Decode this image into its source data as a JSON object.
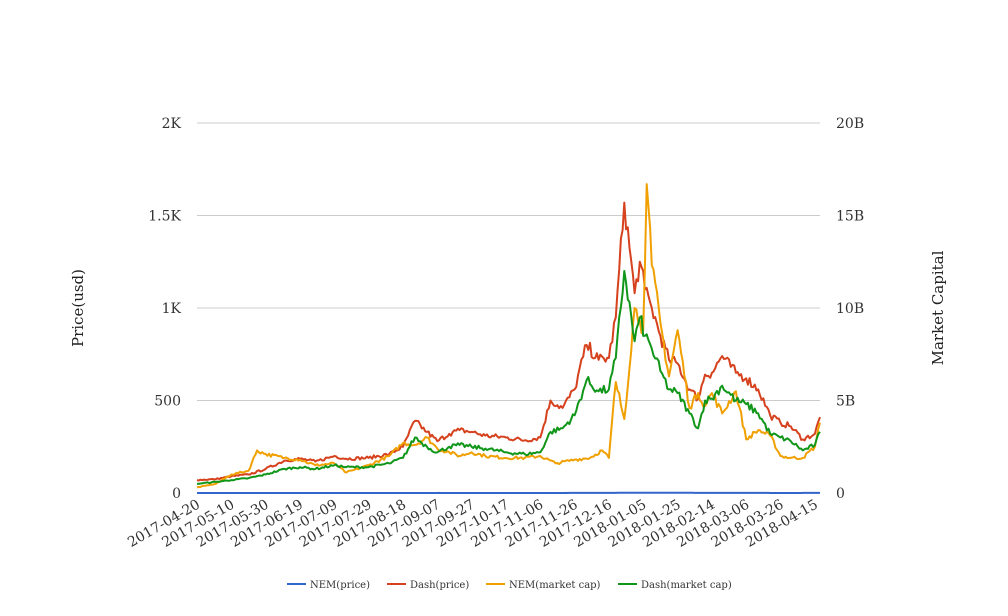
{
  "chart_data": {
    "type": "line",
    "x_label": "",
    "y_left_label": "Price(usd)",
    "y_right_label": "Market Capital",
    "x_ticks": [
      "2017-04-20",
      "2017-05-10",
      "2017-05-30",
      "2017-06-19",
      "2017-07-09",
      "2017-07-29",
      "2017-08-18",
      "2017-09-07",
      "2017-09-27",
      "2017-10-17",
      "2017-11-06",
      "2017-11-26",
      "2017-12-16",
      "2018-01-05",
      "2018-01-25",
      "2018-02-14",
      "2018-03-06",
      "2018-03-26",
      "2018-04-15"
    ],
    "y_left_ticks": [
      "0",
      "500",
      "1K",
      "1.5K",
      "2K"
    ],
    "y_right_ticks": [
      "0",
      "5B",
      "10B",
      "15B",
      "20B"
    ],
    "y_left_range": [
      0,
      2000
    ],
    "y_right_range": [
      0,
      20
    ],
    "y_right_unit": "B",
    "grid": true,
    "legend_position": "bottom",
    "series": [
      {
        "name": "NEM(price)",
        "axis": "left",
        "color": "#3366cc",
        "x": [
          "2017-04-20",
          "2017-05-10",
          "2017-05-30",
          "2017-06-19",
          "2017-07-09",
          "2017-07-29",
          "2017-08-18",
          "2017-09-07",
          "2017-09-27",
          "2017-10-17",
          "2017-11-06",
          "2017-11-26",
          "2017-12-16",
          "2018-01-05",
          "2018-01-25",
          "2018-02-14",
          "2018-03-06",
          "2018-03-26",
          "2018-04-15",
          "2018-04-18"
        ],
        "values": [
          0.02,
          0.05,
          0.2,
          0.18,
          0.15,
          0.17,
          0.24,
          0.27,
          0.21,
          0.19,
          0.2,
          0.28,
          0.6,
          1.5,
          1.0,
          0.55,
          0.4,
          0.22,
          0.3,
          0.35
        ]
      },
      {
        "name": "Dash(price)",
        "axis": "left",
        "color": "#d6411e",
        "x": [
          "2017-04-20",
          "2017-05-01",
          "2017-05-10",
          "2017-05-20",
          "2017-05-30",
          "2017-06-10",
          "2017-06-19",
          "2017-06-28",
          "2017-07-09",
          "2017-07-16",
          "2017-07-29",
          "2017-08-10",
          "2017-08-18",
          "2017-08-25",
          "2017-09-01",
          "2017-09-07",
          "2017-09-14",
          "2017-09-20",
          "2017-09-27",
          "2017-10-05",
          "2017-10-17",
          "2017-10-28",
          "2017-11-06",
          "2017-11-12",
          "2017-11-19",
          "2017-11-26",
          "2017-12-03",
          "2017-12-10",
          "2017-12-16",
          "2017-12-20",
          "2017-12-25",
          "2017-12-31",
          "2018-01-03",
          "2018-01-06",
          "2018-01-10",
          "2018-01-15",
          "2018-01-20",
          "2018-01-25",
          "2018-02-01",
          "2018-02-06",
          "2018-02-10",
          "2018-02-14",
          "2018-02-20",
          "2018-02-28",
          "2018-03-06",
          "2018-03-13",
          "2018-03-20",
          "2018-03-26",
          "2018-04-01",
          "2018-04-08",
          "2018-04-15",
          "2018-04-18"
        ],
        "values": [
          70,
          75,
          90,
          100,
          130,
          175,
          185,
          170,
          200,
          185,
          190,
          210,
          250,
          390,
          330,
          280,
          320,
          340,
          330,
          310,
          300,
          285,
          300,
          500,
          460,
          560,
          800,
          720,
          730,
          950,
          1570,
          1080,
          1250,
          1100,
          1000,
          850,
          720,
          700,
          560,
          510,
          640,
          650,
          740,
          650,
          620,
          560,
          420,
          380,
          360,
          290,
          320,
          410
        ]
      },
      {
        "name": "NEM(market cap)",
        "axis": "right",
        "color": "#f0a000",
        "x": [
          "2017-04-20",
          "2017-05-01",
          "2017-05-10",
          "2017-05-20",
          "2017-05-25",
          "2017-05-30",
          "2017-06-10",
          "2017-06-19",
          "2017-06-28",
          "2017-07-09",
          "2017-07-16",
          "2017-07-29",
          "2017-08-10",
          "2017-08-18",
          "2017-08-25",
          "2017-09-01",
          "2017-09-07",
          "2017-09-14",
          "2017-09-20",
          "2017-09-27",
          "2017-10-05",
          "2017-10-17",
          "2017-10-28",
          "2017-11-06",
          "2017-11-15",
          "2017-11-26",
          "2017-12-05",
          "2017-12-12",
          "2017-12-16",
          "2017-12-20",
          "2017-12-25",
          "2017-12-31",
          "2018-01-03",
          "2018-01-05",
          "2018-01-07",
          "2018-01-10",
          "2018-01-15",
          "2018-01-20",
          "2018-01-25",
          "2018-02-01",
          "2018-02-06",
          "2018-02-10",
          "2018-02-14",
          "2018-02-20",
          "2018-02-28",
          "2018-03-06",
          "2018-03-13",
          "2018-03-20",
          "2018-03-26",
          "2018-04-01",
          "2018-04-08",
          "2018-04-15",
          "2018-04-18"
        ],
        "values": [
          0.3,
          0.5,
          1.0,
          1.2,
          2.3,
          2.1,
          1.9,
          1.8,
          1.5,
          1.6,
          1.1,
          1.5,
          2.0,
          2.7,
          2.6,
          3.0,
          2.4,
          2.2,
          2.0,
          2.2,
          2.0,
          1.9,
          1.9,
          2.0,
          1.6,
          1.8,
          1.9,
          2.3,
          1.9,
          6.0,
          4.0,
          10.0,
          9.3,
          8.8,
          16.7,
          12.3,
          9.2,
          6.3,
          8.8,
          4.6,
          5.4,
          4.7,
          5.4,
          4.3,
          5.5,
          2.9,
          3.4,
          3.1,
          2.0,
          1.9,
          1.9,
          2.5,
          3.8
        ]
      },
      {
        "name": "Dash(market cap)",
        "axis": "right",
        "color": "#109618",
        "x": [
          "2017-04-20",
          "2017-05-01",
          "2017-05-10",
          "2017-05-20",
          "2017-05-30",
          "2017-06-10",
          "2017-06-19",
          "2017-06-28",
          "2017-07-09",
          "2017-07-16",
          "2017-07-29",
          "2017-08-10",
          "2017-08-18",
          "2017-08-25",
          "2017-09-01",
          "2017-09-07",
          "2017-09-14",
          "2017-09-20",
          "2017-09-27",
          "2017-10-05",
          "2017-10-17",
          "2017-10-28",
          "2017-11-06",
          "2017-11-12",
          "2017-11-19",
          "2017-11-26",
          "2017-12-03",
          "2017-12-10",
          "2017-12-16",
          "2017-12-20",
          "2017-12-25",
          "2017-12-31",
          "2018-01-03",
          "2018-01-06",
          "2018-01-10",
          "2018-01-15",
          "2018-01-20",
          "2018-01-25",
          "2018-02-01",
          "2018-02-06",
          "2018-02-10",
          "2018-02-14",
          "2018-02-20",
          "2018-02-28",
          "2018-03-06",
          "2018-03-13",
          "2018-03-20",
          "2018-03-26",
          "2018-04-01",
          "2018-04-08",
          "2018-04-15",
          "2018-04-18"
        ],
        "values": [
          0.5,
          0.6,
          0.7,
          0.8,
          1.0,
          1.3,
          1.4,
          1.3,
          1.5,
          1.4,
          1.4,
          1.6,
          1.9,
          3.0,
          2.5,
          2.2,
          2.5,
          2.6,
          2.5,
          2.4,
          2.2,
          2.1,
          2.2,
          3.3,
          3.5,
          4.2,
          6.1,
          5.5,
          5.6,
          7.3,
          12.0,
          8.2,
          9.5,
          8.5,
          7.8,
          6.6,
          5.6,
          5.4,
          4.3,
          3.5,
          5.0,
          5.1,
          5.8,
          5.0,
          4.8,
          4.3,
          3.2,
          3.0,
          2.8,
          2.3,
          2.6,
          3.3
        ]
      }
    ]
  }
}
